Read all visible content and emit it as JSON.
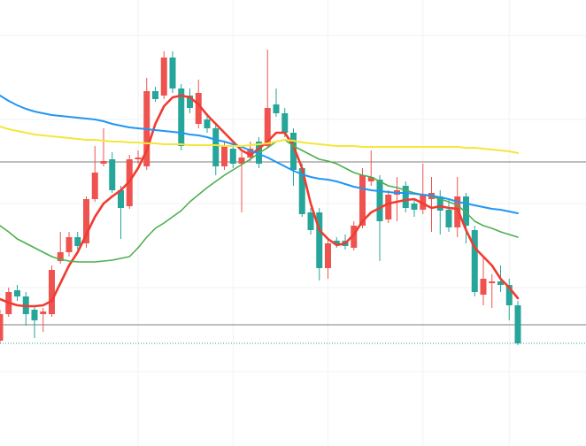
{
  "chart_data": {
    "type": "candlestick",
    "ylim": [
      0,
      504
    ],
    "grid": true,
    "grid_y": [
      464,
      369,
      274,
      179,
      84
    ],
    "grid_x": [
      16,
      27,
      38,
      49,
      59
    ],
    "up_color": "#ef5350",
    "down_color": "#26a69a",
    "open": [
      119,
      149,
      176,
      169,
      154,
      149,
      149,
      209,
      219,
      236,
      229,
      279,
      319,
      324,
      289,
      271,
      324,
      316,
      401,
      396,
      439,
      404,
      396,
      364,
      369,
      359,
      316,
      336,
      319,
      326,
      344,
      339,
      386,
      376,
      354,
      314,
      264,
      264,
      201,
      232,
      232,
      224,
      249,
      299,
      301,
      256,
      284,
      294,
      274,
      267,
      279,
      282,
      267,
      247,
      282,
      244,
      171,
      184,
      186,
      182,
      159
    ],
    "high": [
      154,
      179,
      182,
      174,
      159,
      156,
      204,
      242,
      242,
      242,
      282,
      339,
      359,
      332,
      294,
      329,
      334,
      416,
      406,
      446,
      446,
      409,
      404,
      414,
      376,
      364,
      344,
      342,
      332,
      344,
      349,
      448,
      404,
      382,
      359,
      319,
      269,
      269,
      234,
      236,
      239,
      254,
      314,
      334,
      306,
      289,
      304,
      299,
      279,
      319,
      304,
      289,
      279,
      304,
      286,
      249,
      214,
      194,
      204,
      189,
      164
    ],
    "low": [
      116,
      146,
      164,
      136,
      122,
      129,
      146,
      206,
      214,
      222,
      224,
      276,
      316,
      286,
      234,
      268,
      319,
      312,
      389,
      392,
      399,
      334,
      376,
      359,
      354,
      306,
      312,
      314,
      264,
      322,
      314,
      336,
      372,
      349,
      294,
      259,
      239,
      187,
      189,
      224,
      222,
      221,
      246,
      294,
      209,
      252,
      254,
      264,
      259,
      262,
      242,
      239,
      242,
      236,
      229,
      169,
      159,
      156,
      174,
      142,
      114
    ],
    "close": [
      149,
      174,
      169,
      149,
      142,
      152,
      199,
      219,
      236,
      226,
      279,
      309,
      322,
      289,
      269,
      324,
      326,
      401,
      392,
      439,
      404,
      339,
      382,
      399,
      359,
      316,
      339,
      319,
      326,
      336,
      319,
      382,
      376,
      354,
      312,
      262,
      244,
      201,
      229,
      228,
      226,
      249,
      306,
      304,
      254,
      284,
      289,
      269,
      267,
      284,
      286,
      266,
      247,
      282,
      249,
      174,
      189,
      186,
      182,
      159,
      116
    ],
    "moving_averages": [
      {
        "color": "#f23b30",
        "width": 2.6,
        "values": [
          166,
          162,
          159,
          158,
          158,
          159,
          164,
          184,
          204,
          219,
          239,
          259,
          274,
          282,
          289,
          299,
          314,
          334,
          364,
          384,
          394,
          396,
          394,
          386,
          374,
          364,
          354,
          344,
          334,
          329,
          336,
          344,
          354,
          354,
          339,
          314,
          274,
          244,
          234,
          227,
          229,
          239,
          254,
          264,
          269,
          274,
          276,
          278,
          279,
          274,
          269,
          271,
          269,
          268,
          244,
          224,
          214,
          204,
          189,
          179,
          167
        ]
      },
      {
        "color": "#4caf50",
        "width": 1.6,
        "values": [
          249,
          242,
          234,
          229,
          224,
          219,
          214,
          211,
          209,
          208,
          208,
          208,
          209,
          210,
          212,
          214,
          224,
          236,
          246,
          252,
          259,
          266,
          276,
          284,
          292,
          299,
          306,
          312,
          318,
          324,
          331,
          337,
          344,
          346,
          339,
          334,
          329,
          324,
          322,
          319,
          314,
          309,
          306,
          304,
          299,
          294,
          292,
          289,
          286,
          284,
          282,
          279,
          276,
          272,
          264,
          254,
          249,
          246,
          242,
          239,
          236
        ]
      },
      {
        "color": "#2196f3",
        "width": 2,
        "values": [
          396,
          390,
          385,
          381,
          378,
          376,
          374,
          373,
          372,
          371,
          370,
          369,
          367,
          364,
          362,
          360,
          359,
          358,
          357,
          356,
          355,
          354,
          352,
          351,
          349,
          346,
          344,
          341,
          338,
          334,
          330,
          326,
          321,
          316,
          311,
          307,
          304,
          302,
          301,
          299,
          296,
          293,
          291,
          289,
          288,
          287,
          286,
          286,
          285,
          284,
          283,
          281,
          279,
          276,
          274,
          272,
          270,
          268,
          267,
          265,
          263
        ]
      },
      {
        "color": "#f5e63a",
        "width": 2,
        "values": [
          361,
          358,
          356,
          354,
          352,
          351,
          350,
          349,
          348,
          347,
          346,
          346,
          345,
          344,
          344,
          343,
          343,
          342,
          342,
          341,
          341,
          341,
          340,
          340,
          340,
          340,
          339,
          339,
          339,
          340,
          341,
          342,
          344,
          346,
          345,
          343,
          342,
          341,
          340,
          339,
          339,
          339,
          338,
          338,
          338,
          338,
          338,
          338,
          338,
          338,
          338,
          338,
          338,
          338,
          337,
          337,
          336,
          335,
          334,
          333,
          331
        ]
      }
    ],
    "levels": [
      321,
      137
    ],
    "last_price": 116,
    "last_price_color": "#26a69a"
  }
}
